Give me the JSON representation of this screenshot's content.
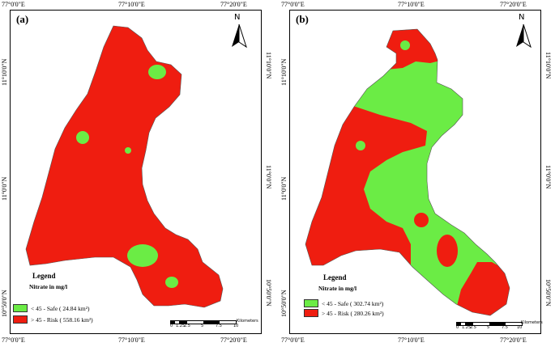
{
  "colors": {
    "safe": "#6bec45",
    "risk": "#ef1d10"
  },
  "panel_a": {
    "tag": "(a)",
    "top_left_coord": "77°0'0\"E",
    "top_mid_coord": "77°10'0\"E",
    "top_right_coord": "77°20'0\"E",
    "bottom_left_coord": "77°0'0\"E",
    "bottom_mid_coord": "77°10'0\"E",
    "bottom_right_coord": "77°20'0\"E",
    "left_top_coord": "11°10'0\"N",
    "left_mid_coord": "11°0'0\"N",
    "left_bottom_coord": "10°50'0\"N",
    "right_top_coord": "11°10'0\"N",
    "right_mid_coord": "11°0'0\"N",
    "right_bottom_coord": "10°50'0\"N",
    "north": "N",
    "legend": {
      "title": "Legend",
      "subtitle": "Nitrate in mg/l",
      "safe_label": "< 45 -  Safe ( 24.84 km²)",
      "risk_label": "> 45 - Risk ( 558.16 km²)"
    },
    "scale": {
      "ticks": [
        "0",
        "1.25",
        "2.5",
        "5",
        "7.5",
        "10"
      ],
      "unit": "Kilometers"
    }
  },
  "panel_b": {
    "tag": "(b)",
    "top_left_coord": "77°0'0\"E",
    "top_mid_coord": "77°10'0\"E",
    "top_right_coord": "77°20'0\"E",
    "bottom_left_coord": "77°0'0\"E",
    "bottom_mid_coord": "77°10'0\"E",
    "bottom_right_coord": "77°20'0\"E",
    "left_top_coord": "11°10'0\"N",
    "left_mid_coord": "11°0'0\"N",
    "left_bottom_coord": "10°50'0\"N",
    "right_top_coord": "11°10'0\"N",
    "right_mid_coord": "11°0'0\"N",
    "right_bottom_coord": "10°50'0\"N",
    "north": "N",
    "legend": {
      "title": "Legend",
      "subtitle": "Nitrate in mg/l",
      "safe_label": "< 45 -  Safe ( 302.74 km²)",
      "risk_label": "> 45 - Risk ( 280.26 km²)"
    },
    "scale": {
      "ticks": [
        "0",
        "1.25",
        "2.5",
        "5",
        "7.5",
        "10"
      ],
      "unit": "Kilometers"
    }
  }
}
